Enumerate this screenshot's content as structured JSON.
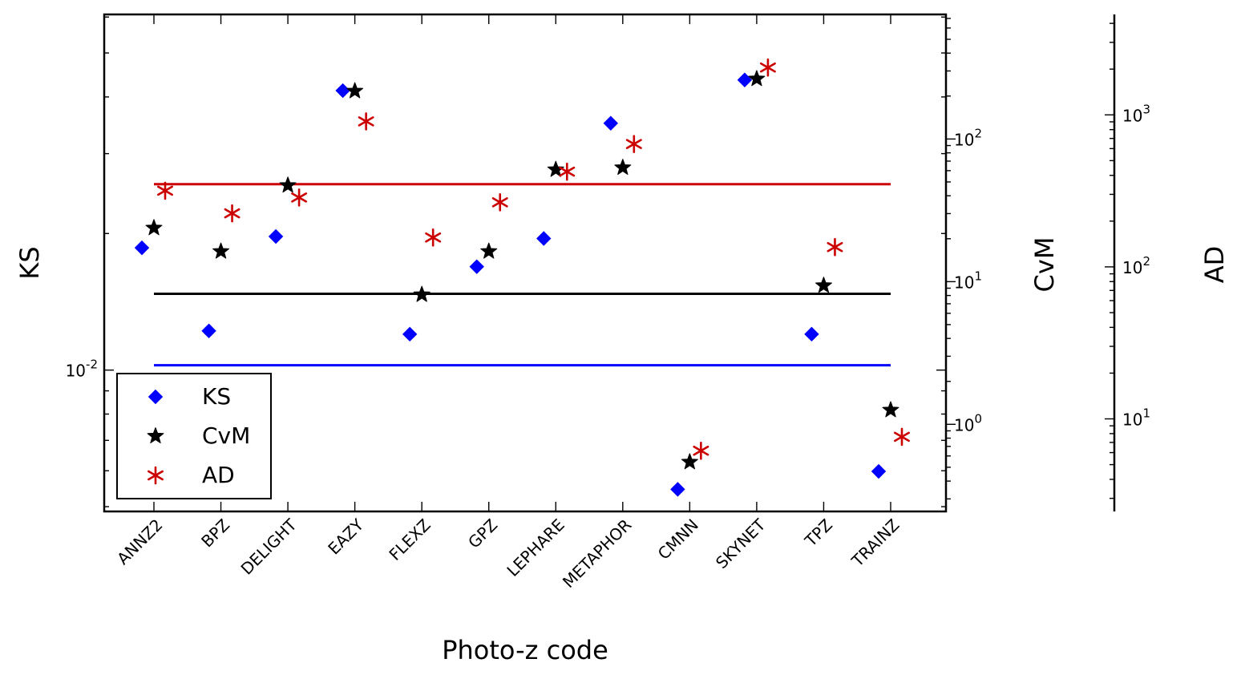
{
  "chart_data": {
    "type": "scatter",
    "xlabel": "Photo-z code",
    "categories": [
      "ANNZ2",
      "BPZ",
      "DELIGHT",
      "EAZY",
      "FLEXZ",
      "GPZ",
      "LEPHARE",
      "METAPHOR",
      "CMNN",
      "SKYNET",
      "TPZ",
      "TRAINZ"
    ],
    "axes": [
      {
        "id": "ks",
        "label": "KS",
        "scale": "log",
        "ylim": [
          0.00488,
          0.0608
        ],
        "side": "left",
        "ticks": [
          {
            "value": 0.01,
            "base": "10",
            "exp": "-2"
          }
        ]
      },
      {
        "id": "cvm",
        "label": "CvM",
        "scale": "log",
        "ylim": [
          0.245,
          747
        ],
        "side": "right",
        "ticks": [
          {
            "value": 1,
            "base": "10",
            "exp": "0"
          },
          {
            "value": 10,
            "base": "10",
            "exp": "1"
          },
          {
            "value": 100,
            "base": "10",
            "exp": "2"
          }
        ]
      },
      {
        "id": "ad",
        "label": "AD",
        "scale": "log",
        "ylim": [
          2.46,
          4580
        ],
        "side": "right",
        "ticks": [
          {
            "value": 10,
            "base": "10",
            "exp": "1"
          },
          {
            "value": 100,
            "base": "10",
            "exp": "2"
          },
          {
            "value": 1000,
            "base": "10",
            "exp": "3"
          }
        ]
      }
    ],
    "series": [
      {
        "name": "KS",
        "axis": "ks",
        "marker": "diamond",
        "color": "#0000ff",
        "values": [
          0.0186,
          0.0122,
          0.0197,
          0.0413,
          0.012,
          0.0169,
          0.0195,
          0.035,
          0.00546,
          0.0436,
          0.012,
          0.00598
        ]
      },
      {
        "name": "CvM",
        "axis": "cvm",
        "marker": "star",
        "color": "#000000",
        "values": [
          23.8,
          16.3,
          47.3,
          217,
          8.11,
          16.3,
          61.0,
          63.0,
          0.544,
          264,
          9.39,
          1.26
        ]
      },
      {
        "name": "AD",
        "axis": "ad",
        "marker": "asterisk",
        "color": "#cc0000",
        "values": [
          317,
          225,
          286,
          906,
          156,
          266,
          423,
          643,
          6.17,
          2050,
          135,
          7.62
        ]
      }
    ],
    "reference_lines": [
      {
        "axis": "ks",
        "value": 0.01025,
        "color": "#0000ff"
      },
      {
        "axis": "cvm",
        "value": 8.22,
        "color": "#000000"
      },
      {
        "axis": "ad",
        "value": 350,
        "color": "#cc0000"
      }
    ],
    "legend": {
      "placement": "lower-left",
      "entries": [
        "KS",
        "CvM",
        "AD"
      ]
    },
    "grid": false
  }
}
